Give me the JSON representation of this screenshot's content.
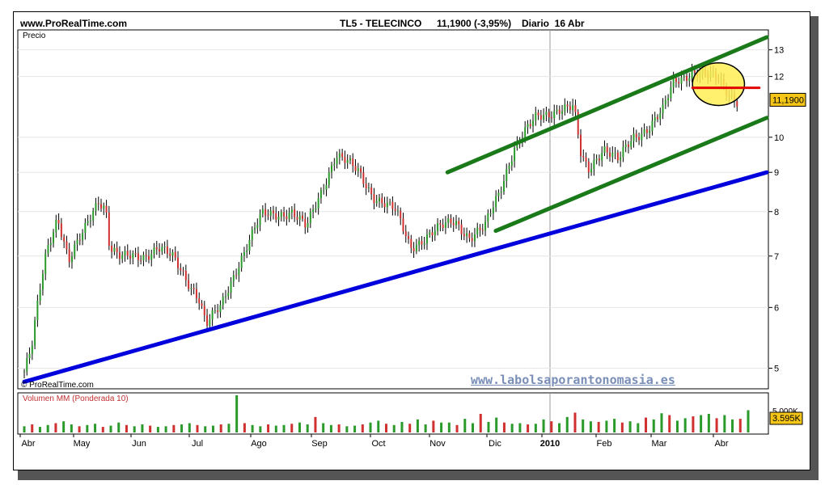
{
  "header": {
    "site": "www.ProRealTime.com",
    "instrument": "TL5 - TELECINCO",
    "last_change": "11,1900 (-3,95%)",
    "period": "Diario  16 Abr"
  },
  "panels": {
    "price_label": "Precio",
    "copyright": "© ProRealTime.com",
    "volume_label": "Volumen MM (Ponderada 10)",
    "watermark": "www.labolsaporantonomasia.es"
  },
  "colors": {
    "price_channel": "#1a7a1a",
    "support": "#0000dd",
    "level_line": "#e00000",
    "highlight": "#ffee55",
    "last_price_box": "#f5c518",
    "volume_up": "#2a9a2a",
    "volume_down": "#d03030"
  },
  "chart_data": {
    "type": "candlestick",
    "title": "TL5 - TELECINCO  11,1900 (-3,95%)  Diario  16 Abr",
    "ylabel": "Precio",
    "y_scale": "log",
    "ylim": [
      4.7,
      13.8
    ],
    "y_ticks": [
      "13",
      "12",
      "10",
      "9",
      "8",
      "7",
      "6",
      "5"
    ],
    "last_price_label": "11,1900",
    "x_tick_labels": [
      "Abr",
      "May",
      "Jun",
      "Jul",
      "Ago",
      "Sep",
      "Oct",
      "Nov",
      "Dic",
      "2010",
      "Feb",
      "Mar",
      "Abr"
    ],
    "price_path": [
      {
        "t": 0.0,
        "v": 4.95
      },
      {
        "t": 0.01,
        "v": 5.3
      },
      {
        "t": 0.02,
        "v": 6.2
      },
      {
        "t": 0.03,
        "v": 7.1
      },
      {
        "t": 0.045,
        "v": 7.9
      },
      {
        "t": 0.06,
        "v": 6.9
      },
      {
        "t": 0.08,
        "v": 7.5
      },
      {
        "t": 0.1,
        "v": 8.3
      },
      {
        "t": 0.11,
        "v": 8.1
      },
      {
        "t": 0.115,
        "v": 7.2
      },
      {
        "t": 0.13,
        "v": 6.95
      },
      {
        "t": 0.16,
        "v": 7.0
      },
      {
        "t": 0.18,
        "v": 7.2
      },
      {
        "t": 0.2,
        "v": 6.95
      },
      {
        "t": 0.22,
        "v": 6.5
      },
      {
        "t": 0.235,
        "v": 6.2
      },
      {
        "t": 0.245,
        "v": 5.7
      },
      {
        "t": 0.265,
        "v": 6.0
      },
      {
        "t": 0.29,
        "v": 6.9
      },
      {
        "t": 0.32,
        "v": 7.9
      },
      {
        "t": 0.36,
        "v": 8.0
      },
      {
        "t": 0.38,
        "v": 7.6
      },
      {
        "t": 0.4,
        "v": 8.5
      },
      {
        "t": 0.42,
        "v": 9.5
      },
      {
        "t": 0.45,
        "v": 9.0
      },
      {
        "t": 0.47,
        "v": 8.4
      },
      {
        "t": 0.5,
        "v": 8.0
      },
      {
        "t": 0.52,
        "v": 7.2
      },
      {
        "t": 0.55,
        "v": 7.5
      },
      {
        "t": 0.58,
        "v": 7.8
      },
      {
        "t": 0.6,
        "v": 7.4
      },
      {
        "t": 0.62,
        "v": 7.6
      },
      {
        "t": 0.64,
        "v": 8.5
      },
      {
        "t": 0.66,
        "v": 9.7
      },
      {
        "t": 0.69,
        "v": 10.6
      },
      {
        "t": 0.72,
        "v": 10.9
      },
      {
        "t": 0.74,
        "v": 10.9
      },
      {
        "t": 0.75,
        "v": 9.4
      },
      {
        "t": 0.76,
        "v": 9.1
      },
      {
        "t": 0.78,
        "v": 9.7
      },
      {
        "t": 0.8,
        "v": 9.3
      },
      {
        "t": 0.82,
        "v": 10.0
      },
      {
        "t": 0.84,
        "v": 10.3
      },
      {
        "t": 0.86,
        "v": 10.8
      },
      {
        "t": 0.875,
        "v": 11.8
      },
      {
        "t": 0.9,
        "v": 12.2
      },
      {
        "t": 0.92,
        "v": 12.0
      },
      {
        "t": 0.935,
        "v": 11.9
      },
      {
        "t": 0.95,
        "v": 11.4
      },
      {
        "t": 0.96,
        "v": 11.19
      }
    ],
    "lines": [
      {
        "name": "channel-upper",
        "from": {
          "t": 0.57,
          "v": 9.0
        },
        "to": {
          "t": 1.0,
          "v": 13.5
        }
      },
      {
        "name": "channel-lower",
        "from": {
          "t": 0.635,
          "v": 7.55
        },
        "to": {
          "t": 1.0,
          "v": 10.6
        }
      },
      {
        "name": "support",
        "from": {
          "t": 0.0,
          "v": 4.8
        },
        "to": {
          "t": 1.0,
          "v": 9.0
        }
      },
      {
        "name": "level",
        "from": {
          "t": 0.9,
          "v": 11.6
        },
        "to": {
          "t": 0.99,
          "v": 11.6
        }
      }
    ],
    "highlight_region": {
      "t_start": 0.9,
      "t_end": 0.97,
      "v_low": 11.0,
      "v_high": 12.5
    },
    "volume": {
      "label": "Volumen MM (Ponderada 10)",
      "tick_labels": [
        "5.000K"
      ],
      "last_label": "3.595K",
      "ylim": [
        0,
        6000
      ],
      "bars_k": [
        1000,
        1300,
        900,
        1200,
        1500,
        1800,
        1300,
        1000,
        1200,
        1400,
        900,
        1100,
        1600,
        1200,
        1000,
        1300,
        1100,
        900,
        1000,
        1200,
        1300,
        1500,
        1200,
        1000,
        1100,
        1300,
        1400,
        6000,
        1500,
        1200,
        1000,
        1300,
        1100,
        1200,
        1400,
        1600,
        1300,
        2500,
        1500,
        1200,
        1300,
        1000,
        1100,
        1300,
        1600,
        1900,
        1400,
        1200,
        1700,
        1400,
        2100,
        1300,
        1900,
        1600,
        1600,
        1200,
        2200,
        1500,
        3000,
        1700,
        2400,
        1600,
        1400,
        1500,
        1300,
        1400,
        2100,
        1800,
        1500,
        2500,
        3200,
        2100,
        1800,
        1700,
        1900,
        2200,
        1600,
        1800,
        1500,
        2400,
        2100,
        3100,
        2800,
        1900,
        2300,
        2600,
        2800,
        3000,
        2300,
        2800,
        2100,
        2200,
        3595
      ]
    }
  }
}
